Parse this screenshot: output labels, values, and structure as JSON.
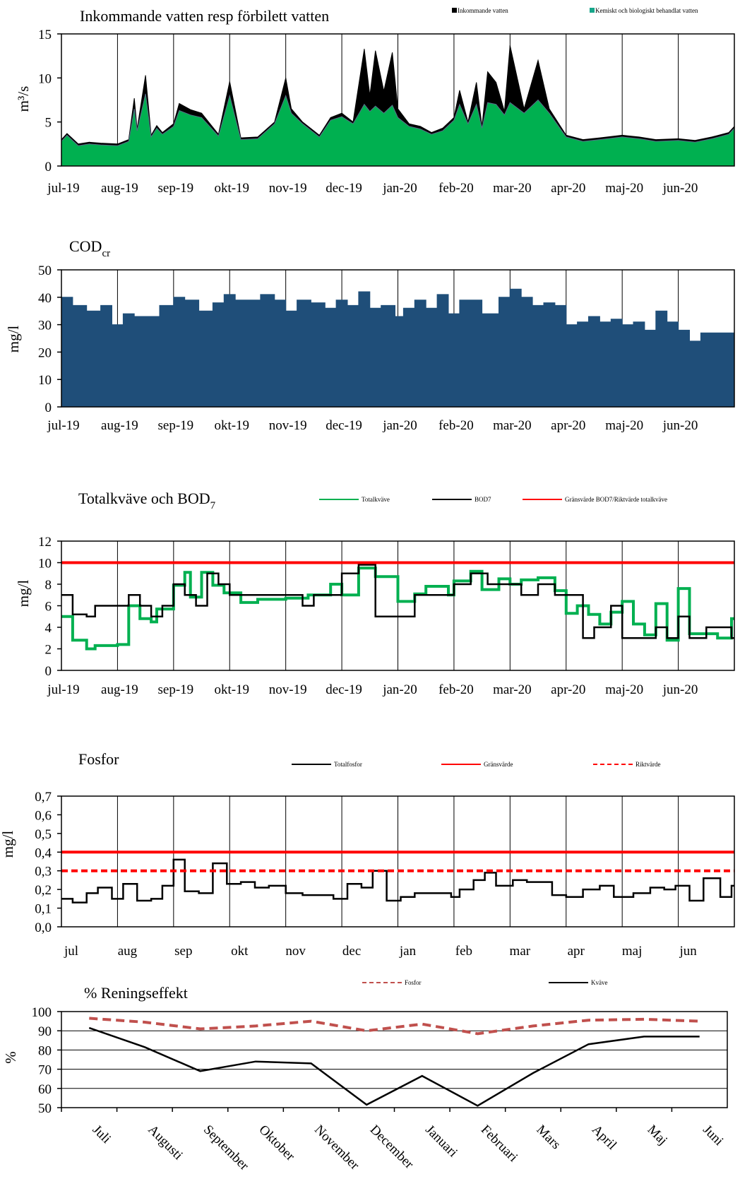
{
  "colors": {
    "black": "#000000",
    "green": "#00b050",
    "teal": "#17a68a",
    "navy": "#1f4e79",
    "red": "#ff0000",
    "dashed_brown": "#c0504d",
    "grid": "#000000"
  },
  "chart_data": [
    {
      "id": "flow",
      "type": "area",
      "title": "Inkommande vatten resp förbilett vatten",
      "ylabel": "m³/s",
      "ylim": [
        0,
        15
      ],
      "yticks": [
        "0",
        "5",
        "10",
        "15"
      ],
      "ytick_values": [
        0,
        5,
        10,
        15
      ],
      "categories": [
        "jul-19",
        "aug-19",
        "sep-19",
        "okt-19",
        "nov-19",
        "dec-19",
        "jan-20",
        "feb-20",
        "mar-20",
        "apr-20",
        "maj-20",
        "jun-20"
      ],
      "legend": [
        "Inkommande vatten",
        "Kemiskt och biologiskt behandlat vatten"
      ],
      "grid": "vertical",
      "series": [
        {
          "name": "Inkommande vatten",
          "color": "#000000",
          "x": [
            0,
            0.1,
            0.3,
            0.5,
            0.7,
            1.0,
            1.2,
            1.3,
            1.35,
            1.5,
            1.6,
            1.7,
            1.8,
            2.0,
            2.1,
            2.3,
            2.5,
            2.8,
            3.0,
            3.2,
            3.5,
            3.8,
            4.0,
            4.1,
            4.3,
            4.6,
            4.8,
            5.0,
            5.2,
            5.4,
            5.5,
            5.6,
            5.75,
            5.9,
            6.0,
            6.2,
            6.4,
            6.6,
            6.8,
            7.0,
            7.1,
            7.25,
            7.4,
            7.5,
            7.6,
            7.75,
            7.9,
            8.0,
            8.25,
            8.5,
            8.7,
            9.0,
            9.3,
            9.6,
            10.0,
            10.3,
            10.6,
            11.0,
            11.3,
            11.6,
            11.9,
            12.0
          ],
          "y": [
            3.0,
            3.7,
            2.5,
            2.7,
            2.6,
            2.5,
            3.0,
            7.7,
            4.2,
            10.3,
            3.5,
            4.6,
            3.8,
            4.8,
            7.1,
            6.4,
            6.0,
            3.6,
            9.6,
            3.2,
            3.3,
            5.0,
            10.0,
            6.5,
            5.0,
            3.5,
            5.5,
            6.0,
            5.0,
            13.3,
            8.0,
            13.1,
            8.5,
            12.9,
            6.5,
            4.8,
            4.5,
            3.8,
            4.3,
            5.5,
            8.6,
            5.0,
            9.5,
            4.5,
            10.7,
            9.5,
            6.2,
            13.7,
            6.5,
            12.0,
            6.5,
            3.5,
            3.0,
            3.2,
            3.5,
            3.3,
            3.0,
            3.1,
            2.9,
            3.3,
            3.8,
            4.5
          ]
        },
        {
          "name": "Kemiskt och biologiskt behandlat vatten",
          "color": "#00b050",
          "x": [
            0,
            0.1,
            0.3,
            0.5,
            0.7,
            1.0,
            1.2,
            1.3,
            1.35,
            1.5,
            1.6,
            1.7,
            1.8,
            2.0,
            2.1,
            2.3,
            2.5,
            2.8,
            3.0,
            3.2,
            3.5,
            3.8,
            4.0,
            4.1,
            4.3,
            4.6,
            4.8,
            5.0,
            5.2,
            5.4,
            5.5,
            5.6,
            5.75,
            5.9,
            6.0,
            6.2,
            6.4,
            6.6,
            6.8,
            7.0,
            7.1,
            7.25,
            7.4,
            7.5,
            7.6,
            7.75,
            7.9,
            8.0,
            8.25,
            8.5,
            8.7,
            9.0,
            9.3,
            9.6,
            10.0,
            10.3,
            10.6,
            11.0,
            11.3,
            11.6,
            11.9,
            12.0
          ],
          "y": [
            2.8,
            3.5,
            2.3,
            2.5,
            2.4,
            2.3,
            2.8,
            6.5,
            4.0,
            8.2,
            3.3,
            4.3,
            3.6,
            4.5,
            6.3,
            5.8,
            5.5,
            3.4,
            8.0,
            3.0,
            3.1,
            4.8,
            8.0,
            6.0,
            4.8,
            3.3,
            5.2,
            5.6,
            4.8,
            7.0,
            6.2,
            6.8,
            6.0,
            6.9,
            5.5,
            4.5,
            4.2,
            3.6,
            4.0,
            5.2,
            7.0,
            4.8,
            7.0,
            4.3,
            7.2,
            7.0,
            5.8,
            7.2,
            6.0,
            7.5,
            6.0,
            3.3,
            2.8,
            3.0,
            3.3,
            3.1,
            2.8,
            2.9,
            2.7,
            3.1,
            3.6,
            4.3
          ]
        }
      ]
    },
    {
      "id": "cod",
      "type": "area",
      "title": "COD",
      "title_sub": "cr",
      "ylabel": "mg/l",
      "ylim": [
        0,
        50
      ],
      "yticks": [
        "0",
        "10",
        "20",
        "30",
        "40",
        "50"
      ],
      "ytick_values": [
        0,
        10,
        20,
        30,
        40,
        50
      ],
      "categories": [
        "jul-19",
        "aug-19",
        "sep-19",
        "okt-19",
        "nov-19",
        "dec-19",
        "jan-20",
        "feb-20",
        "mar-20",
        "apr-20",
        "maj-20",
        "jun-20"
      ],
      "grid": "vertical",
      "series": [
        {
          "name": "COD",
          "color": "#1f4e79",
          "x": [
            0,
            0.2,
            0.45,
            0.7,
            0.9,
            1.1,
            1.3,
            1.5,
            1.75,
            2.0,
            2.2,
            2.45,
            2.7,
            2.9,
            3.1,
            3.3,
            3.55,
            3.8,
            4.0,
            4.2,
            4.45,
            4.7,
            4.9,
            5.1,
            5.3,
            5.5,
            5.7,
            5.95,
            6.1,
            6.3,
            6.5,
            6.7,
            6.9,
            7.1,
            7.3,
            7.5,
            7.8,
            8.0,
            8.2,
            8.4,
            8.6,
            8.8,
            9.0,
            9.2,
            9.4,
            9.6,
            9.8,
            10.0,
            10.2,
            10.4,
            10.6,
            10.8,
            11.0,
            11.2,
            11.4,
            11.6,
            11.8,
            11.95,
            12.0
          ],
          "y": [
            40,
            37,
            35,
            37,
            30,
            34,
            33,
            33,
            37,
            40,
            39,
            35,
            38,
            41,
            39,
            39,
            41,
            39,
            35,
            39,
            38,
            36,
            39,
            37,
            42,
            36,
            37,
            33,
            36,
            39,
            36,
            41,
            34,
            39,
            39,
            34,
            40,
            43,
            40,
            37,
            38,
            37,
            30,
            31,
            33,
            31,
            32,
            30,
            31,
            28,
            35,
            31,
            28,
            24,
            27,
            27,
            27,
            27,
            27
          ]
        }
      ]
    },
    {
      "id": "n_bod",
      "type": "line",
      "title": "Totalkväve och BOD",
      "title_sub": "7",
      "ylabel": "mg/l",
      "ylim": [
        0,
        12
      ],
      "yticks": [
        "0",
        "2",
        "4",
        "6",
        "8",
        "10",
        "12"
      ],
      "ytick_values": [
        0,
        2,
        4,
        6,
        8,
        10,
        12
      ],
      "categories": [
        "jul-19",
        "aug-19",
        "sep-19",
        "okt-19",
        "nov-19",
        "dec-19",
        "jan-20",
        "feb-20",
        "mar-20",
        "apr-20",
        "maj-20",
        "jun-20"
      ],
      "legend": [
        "Totalkväve",
        "BOD7",
        "Gränsvärde BOD7/Riktvärde totalkväve"
      ],
      "grid": "vertical",
      "series": [
        {
          "name": "Totalkväve",
          "color": "#00b050",
          "step": true,
          "x": [
            0,
            0.2,
            0.45,
            0.6,
            1.0,
            1.2,
            1.4,
            1.6,
            1.7,
            2.0,
            2.2,
            2.3,
            2.5,
            2.7,
            2.9,
            3.2,
            3.5,
            4.0,
            4.4,
            4.8,
            5.0,
            5.3,
            5.6,
            6.0,
            6.3,
            6.5,
            6.9,
            7.0,
            7.3,
            7.5,
            7.8,
            8.0,
            8.2,
            8.5,
            8.8,
            9.0,
            9.2,
            9.4,
            9.6,
            9.8,
            10.0,
            10.2,
            10.4,
            10.6,
            10.8,
            11.0,
            11.2,
            11.5,
            11.7,
            11.95
          ],
          "y": [
            5,
            2.8,
            2.0,
            2.3,
            2.4,
            6,
            4.8,
            4.5,
            5.7,
            7.9,
            9.1,
            6.8,
            9.1,
            7.9,
            7.2,
            6.3,
            6.6,
            6.7,
            7,
            8,
            7,
            9.5,
            8.7,
            6.4,
            7.1,
            7.8,
            7,
            8.3,
            9.2,
            7.5,
            8.5,
            8,
            8.4,
            8.6,
            7.4,
            5.3,
            6.0,
            5.2,
            4.3,
            5.4,
            6.4,
            4.3,
            3.3,
            6.2,
            2.8,
            7.6,
            3.4,
            3.4,
            3.0,
            4.8
          ]
        },
        {
          "name": "BOD7",
          "color": "#000000",
          "step": true,
          "x": [
            0,
            0.2,
            0.45,
            0.6,
            1.0,
            1.2,
            1.4,
            1.6,
            1.8,
            2.0,
            2.2,
            2.4,
            2.6,
            2.8,
            3.0,
            3.2,
            3.6,
            4.0,
            4.3,
            4.5,
            4.8,
            5.0,
            5.3,
            5.6,
            5.8,
            6.3,
            6.6,
            7.0,
            7.3,
            7.6,
            8.0,
            8.2,
            8.5,
            8.8,
            9.0,
            9.3,
            9.5,
            9.8,
            10.0,
            10.3,
            10.6,
            10.8,
            11.0,
            11.2,
            11.5,
            11.8,
            11.95
          ],
          "y": [
            7,
            5.2,
            5,
            6,
            6,
            7,
            6,
            5,
            6,
            8,
            7,
            6,
            9,
            8,
            7,
            7,
            7,
            7,
            6,
            7,
            7,
            9,
            9.8,
            5,
            5,
            7,
            7,
            8,
            9,
            8,
            8,
            7,
            8,
            7,
            7,
            3,
            4,
            6,
            3,
            3,
            4,
            3,
            5,
            3,
            4,
            4,
            3
          ]
        },
        {
          "name": "Gränsvärde BOD7/Riktvärde totalkväve",
          "color": "#ff0000",
          "constant": 10
        }
      ]
    },
    {
      "id": "fosfor",
      "type": "line",
      "title": "Fosfor",
      "ylabel": "mg/l",
      "ylim": [
        0,
        0.7
      ],
      "yticks": [
        "0,0",
        "0,1",
        "0,2",
        "0,3",
        "0,4",
        "0,5",
        "0,6",
        "0,7"
      ],
      "ytick_values": [
        0,
        0.1,
        0.2,
        0.3,
        0.4,
        0.5,
        0.6,
        0.7
      ],
      "categories": [
        "jul",
        "aug",
        "sep",
        "okt",
        "nov",
        "dec",
        "jan",
        "feb",
        "mar",
        "apr",
        "maj",
        "jun"
      ],
      "legend": [
        "Totalfosfor",
        "Gränsvärde",
        "Riktvärde"
      ],
      "grid": "vertical",
      "series": [
        {
          "name": "Totalfosfor",
          "color": "#000000",
          "step": true,
          "x": [
            0,
            0.2,
            0.45,
            0.65,
            0.9,
            1.1,
            1.35,
            1.6,
            1.8,
            2.0,
            2.2,
            2.45,
            2.7,
            2.95,
            3.2,
            3.45,
            3.7,
            4.0,
            4.3,
            4.6,
            4.85,
            5.1,
            5.35,
            5.55,
            5.8,
            6.05,
            6.3,
            6.6,
            6.95,
            7.1,
            7.35,
            7.55,
            7.75,
            8.05,
            8.3,
            8.75,
            9.0,
            9.3,
            9.6,
            9.85,
            10.2,
            10.5,
            10.75,
            10.95,
            11.2,
            11.45,
            11.75,
            11.95
          ],
          "y": [
            0.15,
            0.13,
            0.18,
            0.21,
            0.15,
            0.23,
            0.14,
            0.15,
            0.22,
            0.36,
            0.19,
            0.18,
            0.34,
            0.23,
            0.24,
            0.21,
            0.22,
            0.18,
            0.17,
            0.17,
            0.15,
            0.23,
            0.21,
            0.3,
            0.14,
            0.16,
            0.18,
            0.18,
            0.16,
            0.2,
            0.25,
            0.29,
            0.22,
            0.25,
            0.24,
            0.17,
            0.16,
            0.2,
            0.22,
            0.16,
            0.18,
            0.21,
            0.2,
            0.22,
            0.14,
            0.26,
            0.16,
            0.22
          ]
        },
        {
          "name": "Gränsvärde",
          "color": "#ff0000",
          "constant": 0.4
        },
        {
          "name": "Riktvärde",
          "color": "#ff0000",
          "constant": 0.3,
          "dashed": true
        }
      ]
    },
    {
      "id": "rening",
      "type": "line",
      "title": "% Reningseffekt",
      "ylabel": "%",
      "ylim": [
        50,
        100
      ],
      "yticks": [
        "50",
        "60",
        "70",
        "80",
        "90",
        "100"
      ],
      "ytick_values": [
        50,
        60,
        70,
        80,
        90,
        100
      ],
      "categories": [
        "Juli",
        "Augusti",
        "September",
        "Oktober",
        "November",
        "December",
        "Januari",
        "Februari",
        "Mars",
        "April",
        "Maj",
        "Juni"
      ],
      "legend": [
        "Fosfor",
        "Kväve"
      ],
      "grid": "horizontal",
      "series": [
        {
          "name": "Fosfor",
          "color": "#c0504d",
          "dashed": true,
          "values": [
            96.5,
            94.5,
            91,
            92.5,
            95,
            90,
            93.5,
            88.5,
            92.5,
            95.5,
            96,
            95
          ]
        },
        {
          "name": "Kväve",
          "color": "#000000",
          "values": [
            91.5,
            81.5,
            69,
            74,
            73,
            51.5,
            66.5,
            51,
            68,
            83,
            87,
            87
          ]
        }
      ]
    }
  ]
}
